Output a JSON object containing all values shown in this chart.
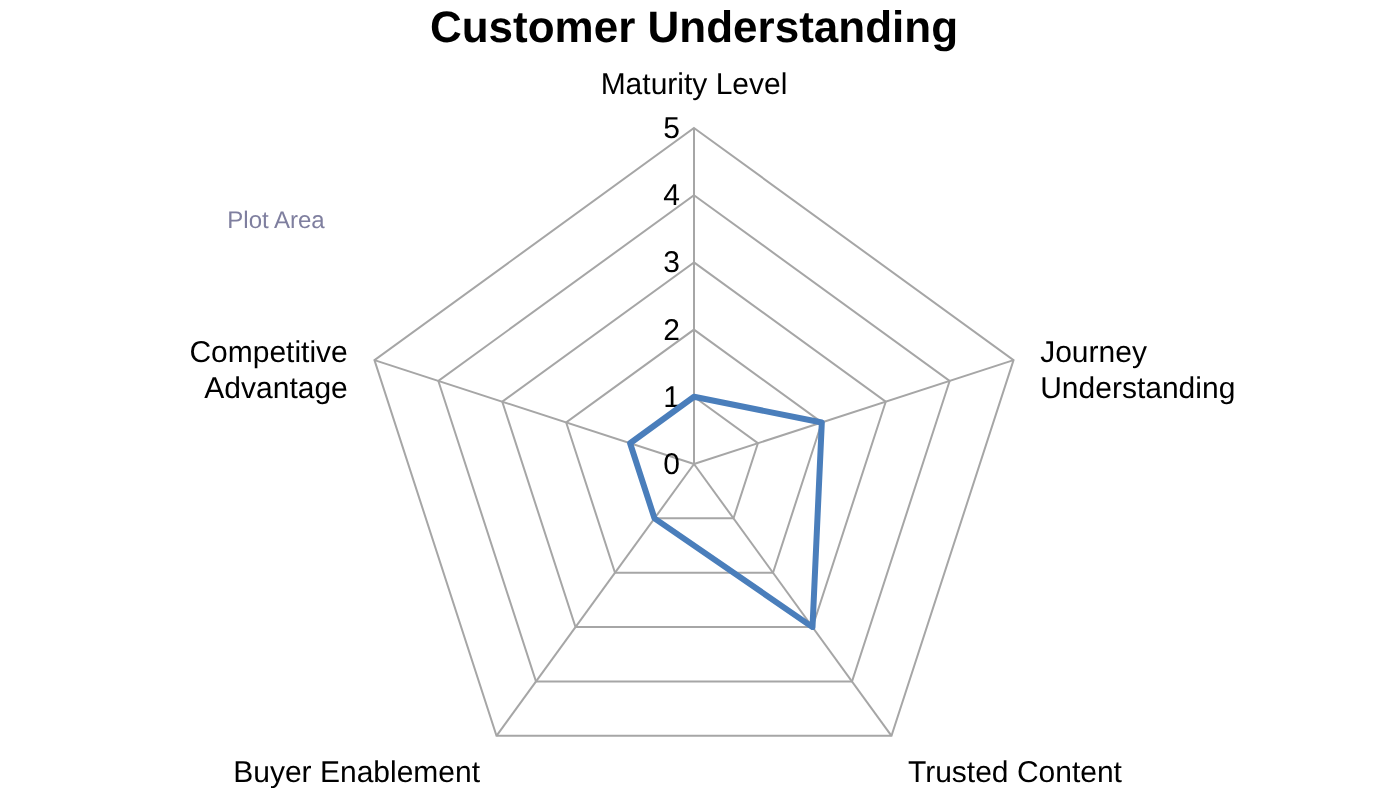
{
  "chart_data": {
    "type": "radar",
    "title": "Customer Understanding",
    "categories": [
      "Maturity Level",
      "Journey Understanding",
      "Trusted Content",
      "Buyer Enablement",
      "Competitive Advantage"
    ],
    "series": [
      {
        "color": "#4a7ebb",
        "values": [
          1,
          2,
          3,
          1,
          1
        ]
      }
    ],
    "ylim": [
      0,
      5
    ],
    "yticks": [
      0,
      1,
      2,
      3,
      4,
      5
    ],
    "grid": true,
    "marker": "none",
    "line_style": "solid",
    "annotations": [
      "Plot Area"
    ]
  }
}
